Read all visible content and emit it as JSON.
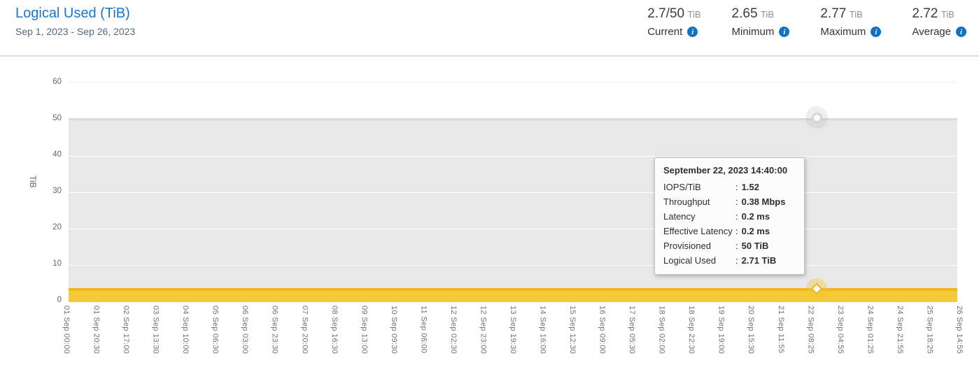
{
  "header": {
    "title": "Logical Used (TiB)",
    "date_range": "Sep 1, 2023 - Sep 26, 2023",
    "stats": [
      {
        "value": "2.7/50",
        "unit": "TiB",
        "label": "Current",
        "icon": "info-icon",
        "icon_glyph": "i"
      },
      {
        "value": "2.65",
        "unit": "TiB",
        "label": "Minimum",
        "icon": "info-icon",
        "icon_glyph": "i"
      },
      {
        "value": "2.77",
        "unit": "TiB",
        "label": "Maximum",
        "icon": "info-icon",
        "icon_glyph": "i"
      },
      {
        "value": "2.72",
        "unit": "TiB",
        "label": "Average",
        "icon": "info-icon",
        "icon_glyph": "i"
      }
    ]
  },
  "colors": {
    "title_blue": "#1777d1",
    "info_icon_blue": "#1172c2",
    "provisioned_gray": "#e8e8e8",
    "logical_used_yellow": "#f5ca39",
    "logical_used_line": "#f0b41e"
  },
  "chart_data": {
    "type": "area",
    "title": "Logical Used (TiB)",
    "xlabel": "",
    "ylabel": "TiB",
    "ylim": [
      0,
      60
    ],
    "yticks": [
      0,
      10,
      20,
      30,
      40,
      50,
      60
    ],
    "grid": true,
    "legend": "none",
    "x": [
      "01 Sep 00:00",
      "01 Sep 20:30",
      "02 Sep 17:00",
      "03 Sep 13:30",
      "04 Sep 10:00",
      "05 Sep 06:30",
      "06 Sep 03:00",
      "06 Sep 23:30",
      "07 Sep 20:00",
      "08 Sep 16:30",
      "09 Sep 13:00",
      "10 Sep 09:30",
      "11 Sep 06:00",
      "12 Sep 02:30",
      "12 Sep 23:00",
      "13 Sep 19:30",
      "14 Sep 16:00",
      "15 Sep 12:30",
      "16 Sep 09:00",
      "17 Sep 05:30",
      "18 Sep 02:00",
      "18 Sep 22:30",
      "19 Sep 19:00",
      "20 Sep 15:30",
      "21 Sep 11:55",
      "22 Sep 08:25",
      "23 Sep 04:55",
      "24 Sep 01:25",
      "24 Sep 21:55",
      "25 Sep 18:25",
      "26 Sep 14:55"
    ],
    "series": [
      {
        "name": "Provisioned",
        "color": "#e8e8e8",
        "values": [
          50,
          50,
          50,
          50,
          50,
          50,
          50,
          50,
          50,
          50,
          50,
          50,
          50,
          50,
          50,
          50,
          50,
          50,
          50,
          50,
          50,
          50,
          50,
          50,
          50,
          50,
          50,
          50,
          50,
          50,
          50
        ]
      },
      {
        "name": "Logical Used",
        "color": "#f5ca39",
        "values": [
          2.7,
          2.7,
          2.7,
          2.7,
          2.7,
          2.7,
          2.7,
          2.7,
          2.7,
          2.7,
          2.7,
          2.7,
          2.7,
          2.7,
          2.7,
          2.7,
          2.7,
          2.7,
          2.7,
          2.7,
          2.7,
          2.7,
          2.7,
          2.7,
          2.7,
          2.7,
          2.7,
          2.7,
          2.7,
          2.7,
          2.7
        ]
      }
    ],
    "stats_summary": {
      "current": "2.7/50 TiB",
      "minimum": "2.65 TiB",
      "maximum": "2.77 TiB",
      "average": "2.72 TiB"
    }
  },
  "tooltip": {
    "title": "September 22, 2023 14:40:00",
    "separator": ":",
    "rows": [
      {
        "label": "IOPS/TiB",
        "value": "1.52"
      },
      {
        "label": "Throughput",
        "value": "0.38 Mbps"
      },
      {
        "label": "Latency",
        "value": "0.2 ms"
      },
      {
        "label": "Effective Latency",
        "value": "0.2 ms"
      },
      {
        "label": "Provisioned",
        "value": "50 TiB"
      },
      {
        "label": "Logical Used",
        "value": "2.71 TiB"
      }
    ]
  }
}
